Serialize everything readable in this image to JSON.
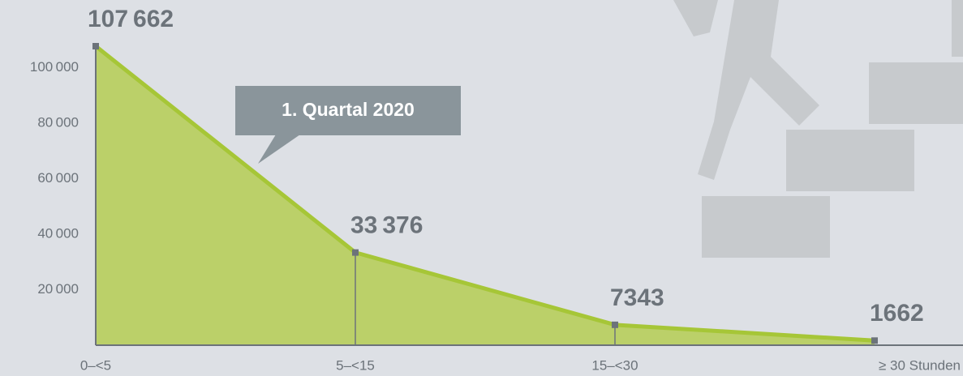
{
  "chart_data": {
    "type": "area",
    "annotation": "1. Quartal 2020",
    "categories": [
      "0–<5",
      "5–<15",
      "15–<30",
      "≥ 30 Stunden"
    ],
    "values": [
      107662,
      33376,
      7343,
      1662
    ],
    "value_labels": [
      "107 662",
      "33 376",
      "7343",
      "1662"
    ],
    "color": "#b8cf62",
    "line_color": "#a6c637",
    "ylim": [
      0,
      110000
    ],
    "yticks": [
      {
        "value": 20000,
        "label": "20 000"
      },
      {
        "value": 40000,
        "label": "40 000"
      },
      {
        "value": 60000,
        "label": "60 000"
      },
      {
        "value": 80000,
        "label": "80 000"
      },
      {
        "value": 100000,
        "label": "100 000"
      }
    ],
    "grid": false
  }
}
